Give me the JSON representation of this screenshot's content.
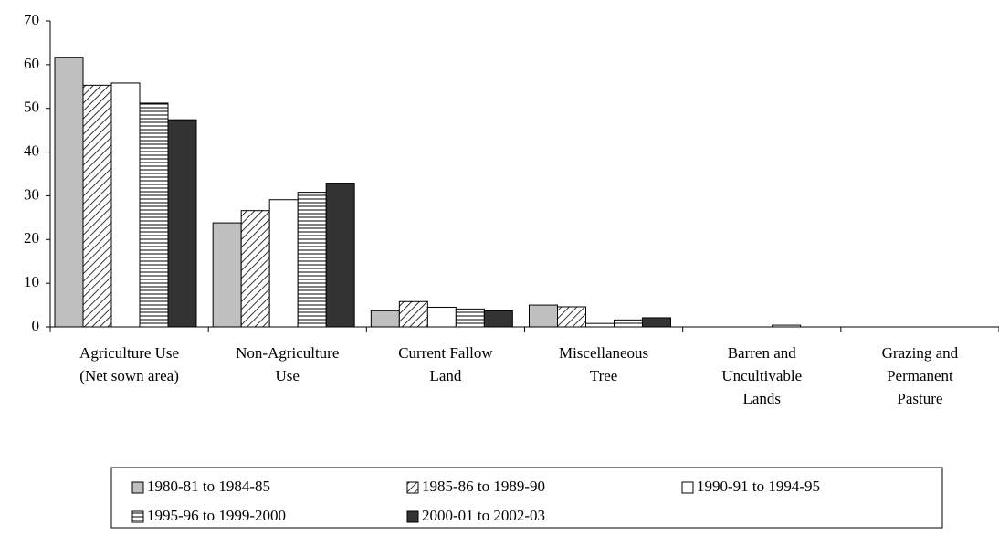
{
  "chart_data": {
    "type": "bar",
    "categories": [
      [
        "Agriculture Use",
        "(Net sown area)"
      ],
      [
        "Non-Agriculture",
        "Use"
      ],
      [
        "Current Fallow",
        "Land"
      ],
      [
        "Miscellaneous",
        "Tree"
      ],
      [
        "Barren and",
        "Uncultivable",
        "Lands"
      ],
      [
        "Grazing and",
        "Permanent",
        "Pasture"
      ]
    ],
    "series": [
      {
        "name": "1980-81 to 1984-85",
        "color": "#bfbfbf",
        "values": [
          61.7,
          23.8,
          3.7,
          5.0,
          0,
          0
        ]
      },
      {
        "name": "1985-86 to 1989-90",
        "color": "#ffffff",
        "pattern": "diagonal",
        "values": [
          55.3,
          26.6,
          5.8,
          4.6,
          0,
          0
        ]
      },
      {
        "name": "1990-91 to 1994-95",
        "color": "#ffffff",
        "values": [
          55.8,
          29.1,
          4.5,
          0.8,
          0,
          0
        ]
      },
      {
        "name": "1995-96 to 1999-2000",
        "color": "#ffffff",
        "pattern": "horizontal",
        "values": [
          51.2,
          30.8,
          4.1,
          1.6,
          0.4,
          0
        ]
      },
      {
        "name": "2000-01 to 2002-03",
        "color": "#333333",
        "values": [
          47.4,
          32.9,
          3.7,
          2.1,
          0,
          0
        ]
      }
    ],
    "ylim": [
      0,
      70
    ],
    "yticks": [
      0,
      10,
      20,
      30,
      40,
      50,
      60,
      70
    ],
    "grid": false,
    "legend": "bottom"
  }
}
